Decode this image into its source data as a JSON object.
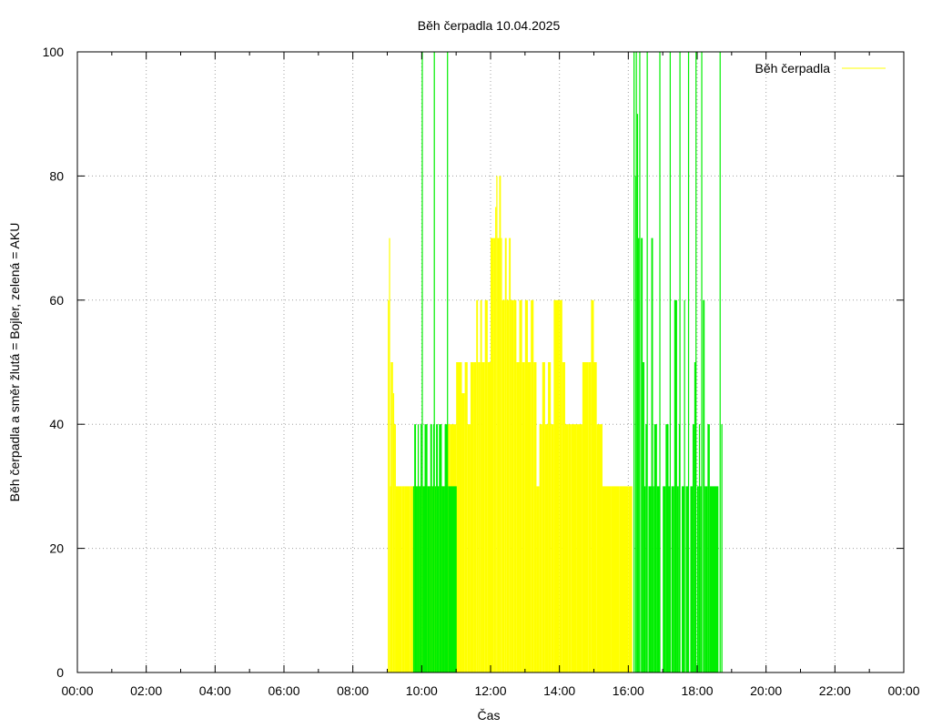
{
  "colors": {
    "boiler": "#ffff00",
    "aku": "#00ee00",
    "grid": "#a0a0a0",
    "axis": "#000000"
  },
  "chart_data": {
    "type": "area",
    "title": "Běh čerpadla 10.04.2025",
    "xlabel": "Čas",
    "ylabel": "Běh čerpadla a směr žlutá = Bojler, zelená = AKU",
    "x_unit": "time of day",
    "xlim": [
      "00:00",
      "24:00"
    ],
    "ylim": [
      0,
      100
    ],
    "x_ticks": [
      "00:00",
      "02:00",
      "04:00",
      "06:00",
      "08:00",
      "10:00",
      "12:00",
      "14:00",
      "16:00",
      "18:00",
      "20:00",
      "22:00",
      "00:00"
    ],
    "y_ticks": [
      "0",
      "20",
      "40",
      "60",
      "80",
      "100"
    ],
    "grid": true,
    "legend": {
      "position": "top-right",
      "entries": [
        "Běh čerpadla"
      ]
    },
    "series": [
      {
        "name": "Běh čerpadla",
        "direction": "Bojler",
        "color": "#ffff00",
        "points": [
          [
            "09:01",
            60
          ],
          [
            "09:03",
            0
          ],
          [
            "09:04",
            70
          ],
          [
            "09:05",
            30
          ],
          [
            "09:06",
            50
          ],
          [
            "09:10",
            45
          ],
          [
            "09:12",
            40
          ],
          [
            "09:15",
            30
          ],
          [
            "09:25",
            30
          ],
          [
            "09:30",
            30
          ],
          [
            "09:40",
            30
          ],
          [
            "09:45",
            30
          ],
          [
            "09:50",
            30
          ],
          [
            "10:00",
            30
          ],
          [
            "10:10",
            30
          ],
          [
            "10:20",
            30
          ],
          [
            "10:30",
            30
          ],
          [
            "10:40",
            30
          ],
          [
            "10:45",
            40
          ],
          [
            "10:50",
            40
          ],
          [
            "11:00",
            50
          ],
          [
            "11:10",
            45
          ],
          [
            "11:15",
            50
          ],
          [
            "11:20",
            40
          ],
          [
            "11:25",
            50
          ],
          [
            "11:30",
            50
          ],
          [
            "11:35",
            60
          ],
          [
            "11:38",
            50
          ],
          [
            "11:42",
            60
          ],
          [
            "11:45",
            50
          ],
          [
            "11:50",
            60
          ],
          [
            "11:55",
            50
          ],
          [
            "12:00",
            70
          ],
          [
            "12:05",
            70
          ],
          [
            "12:08",
            75
          ],
          [
            "12:10",
            80
          ],
          [
            "12:12",
            70
          ],
          [
            "12:15",
            80
          ],
          [
            "12:18",
            70
          ],
          [
            "12:20",
            60
          ],
          [
            "12:25",
            70
          ],
          [
            "12:28",
            60
          ],
          [
            "12:32",
            70
          ],
          [
            "12:35",
            60
          ],
          [
            "12:40",
            60
          ],
          [
            "12:45",
            50
          ],
          [
            "12:50",
            60
          ],
          [
            "12:55",
            50
          ],
          [
            "13:00",
            60
          ],
          [
            "13:05",
            50
          ],
          [
            "13:10",
            60
          ],
          [
            "13:15",
            50
          ],
          [
            "13:20",
            30
          ],
          [
            "13:25",
            40
          ],
          [
            "13:30",
            50
          ],
          [
            "13:35",
            40
          ],
          [
            "13:40",
            50
          ],
          [
            "13:45",
            40
          ],
          [
            "13:50",
            60
          ],
          [
            "14:00",
            60
          ],
          [
            "14:05",
            50
          ],
          [
            "14:10",
            40
          ],
          [
            "14:15",
            40
          ],
          [
            "14:20",
            40
          ],
          [
            "14:30",
            40
          ],
          [
            "14:40",
            50
          ],
          [
            "14:50",
            50
          ],
          [
            "14:55",
            60
          ],
          [
            "15:00",
            50
          ],
          [
            "15:05",
            40
          ],
          [
            "15:15",
            30
          ],
          [
            "15:30",
            30
          ],
          [
            "15:45",
            30
          ],
          [
            "16:00",
            30
          ],
          [
            "16:05",
            30
          ]
        ]
      },
      {
        "name": "Běh čerpadla",
        "direction": "AKU",
        "color": "#00ee00",
        "points": [
          [
            "09:45",
            30
          ],
          [
            "09:47",
            40
          ],
          [
            "09:50",
            30
          ],
          [
            "09:53",
            40
          ],
          [
            "09:55",
            30
          ],
          [
            "09:58",
            40
          ],
          [
            "10:00",
            30
          ],
          [
            "10:01",
            100
          ],
          [
            "10:02",
            30
          ],
          [
            "10:05",
            40
          ],
          [
            "10:10",
            30
          ],
          [
            "10:15",
            40
          ],
          [
            "10:18",
            30
          ],
          [
            "10:20",
            40
          ],
          [
            "10:22",
            100
          ],
          [
            "10:23",
            30
          ],
          [
            "10:25",
            40
          ],
          [
            "10:28",
            30
          ],
          [
            "10:30",
            40
          ],
          [
            "10:35",
            30
          ],
          [
            "10:40",
            40
          ],
          [
            "10:45",
            100
          ],
          [
            "10:46",
            30
          ],
          [
            "16:10",
            100
          ],
          [
            "16:12",
            80
          ],
          [
            "16:14",
            100
          ],
          [
            "16:15",
            90
          ],
          [
            "16:17",
            70
          ],
          [
            "16:19",
            60
          ],
          [
            "16:20",
            100
          ],
          [
            "16:22",
            70
          ],
          [
            "16:25",
            50
          ],
          [
            "16:28",
            30
          ],
          [
            "16:30",
            40
          ],
          [
            "16:33",
            100
          ],
          [
            "16:35",
            30
          ],
          [
            "16:40",
            70
          ],
          [
            "16:43",
            30
          ],
          [
            "16:45",
            40
          ],
          [
            "16:50",
            30
          ],
          [
            "16:55",
            100
          ],
          [
            "17:00",
            30
          ],
          [
            "17:05",
            40
          ],
          [
            "17:10",
            30
          ],
          [
            "17:13",
            100
          ],
          [
            "17:15",
            30
          ],
          [
            "17:20",
            60
          ],
          [
            "17:25",
            30
          ],
          [
            "17:28",
            40
          ],
          [
            "17:30",
            100
          ],
          [
            "17:33",
            30
          ],
          [
            "17:38",
            60
          ],
          [
            "17:40",
            30
          ],
          [
            "17:45",
            100
          ],
          [
            "17:48",
            30
          ],
          [
            "17:52",
            40
          ],
          [
            "17:55",
            50
          ],
          [
            "17:58",
            100
          ],
          [
            "18:00",
            30
          ],
          [
            "18:03",
            40
          ],
          [
            "18:05",
            30
          ],
          [
            "18:08",
            100
          ],
          [
            "18:10",
            60
          ],
          [
            "18:13",
            30
          ],
          [
            "18:18",
            40
          ],
          [
            "18:22",
            30
          ],
          [
            "18:40",
            100
          ],
          [
            "18:42",
            40
          ]
        ]
      }
    ]
  }
}
